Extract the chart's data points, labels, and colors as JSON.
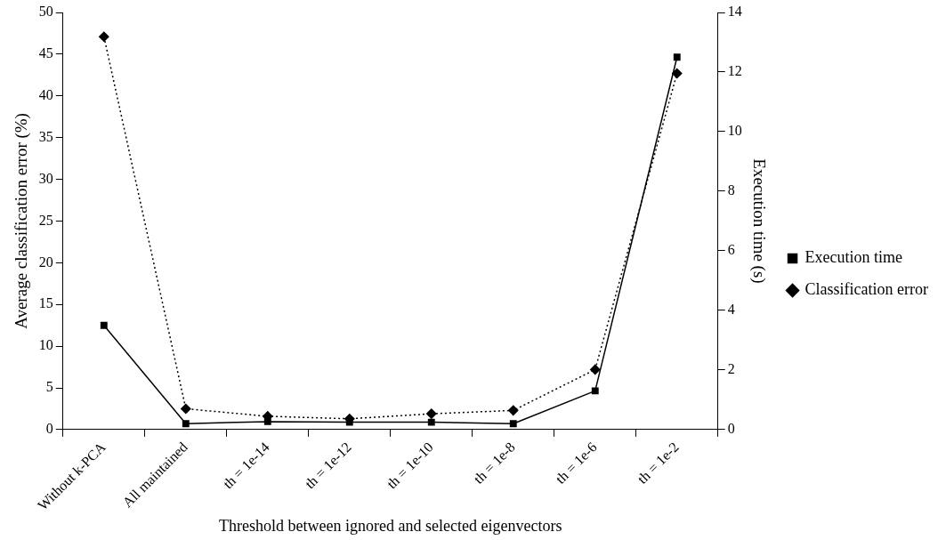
{
  "chart_data": {
    "type": "line",
    "xlabel": "Threshold between ignored and selected eigenvectors",
    "ylabel": "Average classification error (%)",
    "y2label": "Execution time (s)",
    "categories": [
      "Without k-PCA",
      "All maintained",
      "th = 1e-14",
      "th = 1e-12",
      "th = 1e-10",
      "th = 1e-8",
      "th = 1e-6",
      "th = 1e-2"
    ],
    "series": [
      {
        "name": "Execution time",
        "color": "#000000",
        "axis": "y2",
        "marker": "square",
        "line_style": "solid",
        "values": [
          3.5,
          0.2,
          0.27,
          0.25,
          0.25,
          0.2,
          1.3,
          12.5
        ]
      },
      {
        "name": "Classification error",
        "color": "#000000",
        "axis": "y",
        "marker": "diamond",
        "line_style": "dotted",
        "values": [
          47.1,
          2.5,
          1.6,
          1.3,
          1.9,
          2.3,
          7.2,
          42.7
        ]
      }
    ],
    "ylim": [
      0,
      50
    ],
    "yticks": [
      0,
      5,
      10,
      15,
      20,
      25,
      30,
      35,
      40,
      45,
      50
    ],
    "y2lim": [
      0,
      14
    ],
    "y2ticks": [
      0,
      2,
      4,
      6,
      8,
      10,
      12,
      14
    ],
    "grid": false,
    "legend": "right"
  }
}
